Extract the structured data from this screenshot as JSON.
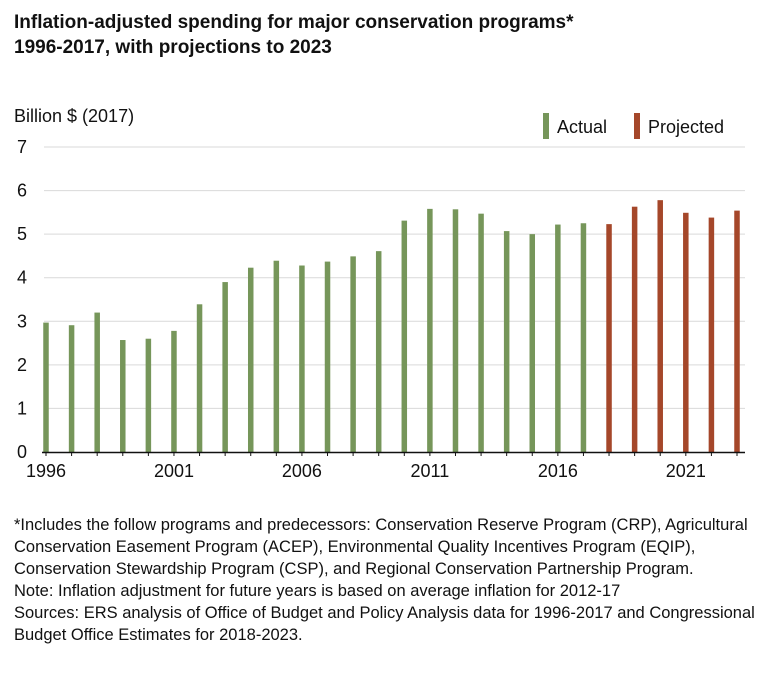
{
  "title_line1": "Inflation-adjusted spending for major conservation programs*",
  "title_line2": "1996-2017, with projections to 2023",
  "colors": {
    "actual": "#76965a",
    "projected": "#a5472a",
    "grid": "#d9d9d9",
    "axis": "#111111"
  },
  "chart_data": {
    "type": "bar",
    "ylabel": "Billion $ (2017)",
    "ylim": [
      0,
      7
    ],
    "yticks": [
      0,
      1,
      2,
      3,
      4,
      5,
      6,
      7
    ],
    "xticks": [
      "1996",
      "2001",
      "2006",
      "2011",
      "2016",
      "2021"
    ],
    "grid": true,
    "legend_position": "top-right",
    "categories": [
      1996,
      1997,
      1998,
      1999,
      2000,
      2001,
      2002,
      2003,
      2004,
      2005,
      2006,
      2007,
      2008,
      2009,
      2010,
      2011,
      2012,
      2013,
      2014,
      2015,
      2016,
      2017,
      2018,
      2019,
      2020,
      2021,
      2022,
      2023
    ],
    "series": [
      {
        "name": "Actual",
        "x": [
          1996,
          1997,
          1998,
          1999,
          2000,
          2001,
          2002,
          2003,
          2004,
          2005,
          2006,
          2007,
          2008,
          2009,
          2010,
          2011,
          2012,
          2013,
          2014,
          2015,
          2016,
          2017
        ],
        "values": [
          2.97,
          2.91,
          3.2,
          2.57,
          2.6,
          2.78,
          3.39,
          3.9,
          4.23,
          4.39,
          4.28,
          4.37,
          4.49,
          4.61,
          5.31,
          5.58,
          5.57,
          5.47,
          5.07,
          5.0,
          5.22,
          5.25
        ]
      },
      {
        "name": "Projected",
        "x": [
          2018,
          2019,
          2020,
          2021,
          2022,
          2023
        ],
        "values": [
          5.23,
          5.63,
          5.78,
          5.49,
          5.38,
          5.54
        ]
      }
    ]
  },
  "notes": [
    "*Includes the follow programs and predecessors: Conservation Reserve Program (CRP), Agricultural Conservation Easement Program (ACEP), Environmental Quality Incentives Program (EQIP), Conservation Stewardship Program (CSP), and Regional Conservation Partnership Program.",
    "Note:  Inflation adjustment for future years is based on average inflation for 2012-17",
    "Sources: ERS analysis of Office of Budget and Policy Analysis data for 1996-2017 and Congressional Budget Office Estimates for 2018-2023."
  ]
}
